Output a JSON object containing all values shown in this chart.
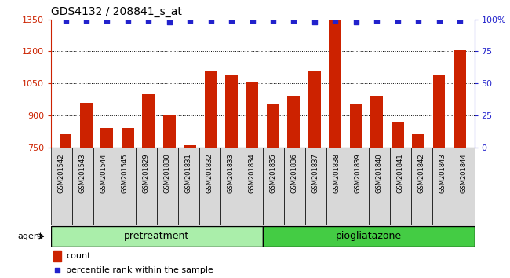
{
  "title": "GDS4132 / 208841_s_at",
  "samples": [
    "GSM201542",
    "GSM201543",
    "GSM201544",
    "GSM201545",
    "GSM201829",
    "GSM201830",
    "GSM201831",
    "GSM201832",
    "GSM201833",
    "GSM201834",
    "GSM201835",
    "GSM201836",
    "GSM201837",
    "GSM201838",
    "GSM201839",
    "GSM201840",
    "GSM201841",
    "GSM201842",
    "GSM201843",
    "GSM201844"
  ],
  "counts": [
    810,
    960,
    840,
    840,
    1000,
    900,
    760,
    1110,
    1090,
    1055,
    955,
    990,
    1110,
    1360,
    950,
    990,
    870,
    810,
    1090,
    1205
  ],
  "percentiles": [
    99,
    99,
    99,
    99,
    99,
    98,
    99,
    99,
    99,
    99,
    99,
    99,
    98,
    99,
    98,
    99,
    99,
    99,
    99,
    99
  ],
  "group_split": 10,
  "group_labels": [
    "pretreatment",
    "piogliatazone"
  ],
  "group_colors": [
    "#aaeeaa",
    "#44cc44"
  ],
  "bar_color": "#cc2200",
  "dot_color": "#2222cc",
  "ylim_left": [
    750,
    1350
  ],
  "ylim_right": [
    0,
    100
  ],
  "yticks_left": [
    750,
    900,
    1050,
    1200,
    1350
  ],
  "yticks_right": [
    0,
    25,
    50,
    75,
    100
  ],
  "ylabel_left_color": "#cc2200",
  "ylabel_right_color": "#2222cc",
  "background_color": "#ffffff",
  "xticklabel_bg": "#d8d8d8",
  "agent_label": "agent",
  "legend_count_label": "count",
  "legend_pct_label": "percentile rank within the sample"
}
